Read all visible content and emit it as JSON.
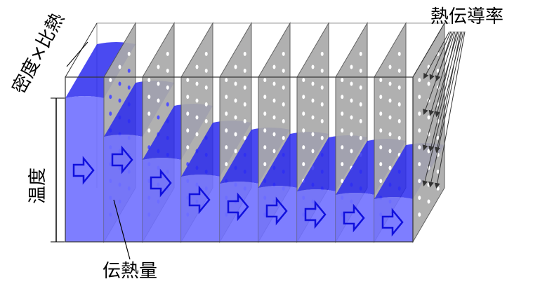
{
  "labels": {
    "density_specific_heat": "密度×比熱",
    "thermal_conductivity": "熱伝導率",
    "temperature": "温度",
    "heat_flow": "伝熱量"
  }
}
